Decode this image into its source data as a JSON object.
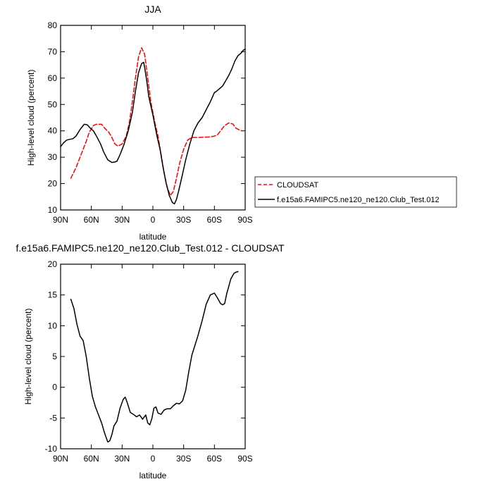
{
  "chart_data": [
    {
      "type": "line",
      "title": "JJA",
      "xlabel": "latitude",
      "ylabel": "High-level cloud (percent)",
      "xlim": [
        90,
        -90
      ],
      "ylim": [
        10,
        80
      ],
      "x_ticks": [
        90,
        60,
        30,
        0,
        -30,
        -60,
        -90
      ],
      "x_tick_labels": [
        "90N",
        "60N",
        "30N",
        "0",
        "30S",
        "60S",
        "90S"
      ],
      "y_ticks": [
        10,
        20,
        30,
        40,
        50,
        60,
        70,
        80
      ],
      "y_tick_labels": [
        "10",
        "20",
        "30",
        "40",
        "50",
        "60",
        "70",
        "80"
      ],
      "legend": {
        "position": "right",
        "entries": [
          "CLOUDSAT",
          "f.e15a6.FAMIPC5.ne120_ne120.Club_Test.012"
        ]
      },
      "series": [
        {
          "name": "CLOUDSAT",
          "color": "#ff0000",
          "dash": "dashed",
          "x": [
            80,
            75,
            70,
            65,
            62,
            58,
            55,
            50,
            47,
            43,
            40,
            37,
            34,
            30,
            26,
            23,
            20,
            17,
            14,
            11,
            8,
            6,
            4,
            2,
            0,
            -2,
            -5,
            -8,
            -11,
            -14,
            -17,
            -20,
            -23,
            -26,
            -30,
            -34,
            -38,
            -42,
            -45,
            -50,
            -55,
            -60,
            -63,
            -66,
            -70,
            -74,
            -78,
            -81,
            -84,
            -87
          ],
          "y": [
            22,
            26,
            31,
            36,
            39.5,
            42,
            42.5,
            42.5,
            41,
            39.5,
            37.5,
            35,
            34.2,
            35,
            38,
            43,
            51,
            60,
            68,
            71.5,
            69,
            63,
            57,
            51,
            47,
            43,
            38,
            31,
            24,
            18.5,
            15.5,
            17,
            22,
            27.5,
            33,
            36.5,
            37.5,
            37.5,
            37.5,
            37.6,
            37.7,
            38,
            38.5,
            40,
            42,
            43,
            42.6,
            41,
            40.4,
            40
          ]
        },
        {
          "name": "f.e15a6.FAMIPC5.ne120_ne120.Club_Test.012",
          "color": "#000000",
          "dash": "solid",
          "x": [
            90,
            87,
            84,
            81,
            78,
            75,
            71,
            67,
            64,
            61,
            58,
            55,
            51,
            48,
            44,
            40,
            37,
            35,
            32,
            28,
            24,
            20,
            17,
            14,
            11,
            9,
            8,
            6,
            4,
            2,
            0,
            -2,
            -4,
            -7,
            -10,
            -13,
            -16,
            -19,
            -21,
            -23,
            -25,
            -28,
            -32,
            -36,
            -40,
            -44,
            -48,
            -52,
            -56,
            -60,
            -62,
            -65,
            -68,
            -71,
            -74,
            -77,
            -80,
            -83,
            -86,
            -88,
            -90
          ],
          "y": [
            34,
            35.5,
            36.5,
            36.8,
            37,
            38,
            40.5,
            42.5,
            42.3,
            41,
            40,
            38,
            35,
            32,
            29,
            28,
            28.2,
            28.5,
            31,
            35,
            40,
            47,
            55,
            62,
            65.5,
            66,
            64,
            59,
            53,
            49.5,
            46,
            42,
            38,
            33,
            26,
            20,
            15.5,
            12.8,
            12.3,
            14,
            17,
            22,
            29,
            35,
            40,
            43,
            45,
            48,
            51,
            54.5,
            55,
            56,
            57,
            59,
            61,
            63.5,
            66.5,
            68.5,
            69.5,
            70.5,
            71
          ]
        }
      ]
    },
    {
      "type": "line",
      "title": "f.e15a6.FAMIPC5.ne120_ne120.Club_Test.012 - CLOUDSAT",
      "xlabel": "latitude",
      "ylabel": "High-level cloud (percent)",
      "xlim": [
        90,
        -90
      ],
      "ylim": [
        -10,
        20
      ],
      "x_ticks": [
        90,
        60,
        30,
        0,
        -30,
        -60,
        -90
      ],
      "x_tick_labels": [
        "90N",
        "60N",
        "30N",
        "0",
        "30S",
        "60S",
        "90S"
      ],
      "y_ticks": [
        -10,
        -5,
        0,
        5,
        10,
        15,
        20
      ],
      "y_tick_labels": [
        "-10",
        "-5",
        "0",
        "5",
        "10",
        "15",
        "20"
      ],
      "series": [
        {
          "name": "",
          "color": "#000000",
          "dash": "solid",
          "x": [
            80,
            77,
            74,
            71,
            68,
            65,
            62,
            59,
            56,
            53,
            50,
            47,
            44,
            42,
            40,
            38,
            35,
            32,
            29,
            27,
            25,
            22,
            19,
            16,
            13,
            10,
            7,
            5,
            3,
            1,
            -1,
            -3,
            -5,
            -8,
            -11,
            -14,
            -17,
            -20,
            -23,
            -26,
            -29,
            -32,
            -35,
            -38,
            -41,
            -44,
            -48,
            -52,
            -56,
            -60,
            -63,
            -66,
            -68,
            -70,
            -72,
            -74,
            -76,
            -79,
            -81,
            -83
          ],
          "y": [
            14.3,
            12.8,
            10.2,
            8.3,
            7.6,
            5,
            1.5,
            -1.5,
            -3.2,
            -4.5,
            -5.8,
            -7.5,
            -8.9,
            -8.7,
            -7.7,
            -6.3,
            -5.5,
            -3.4,
            -2,
            -1.6,
            -2.5,
            -4.1,
            -4.4,
            -4.8,
            -4.5,
            -5.2,
            -4.5,
            -5.8,
            -6.1,
            -5.1,
            -3.4,
            -3.2,
            -4.2,
            -4.4,
            -3.7,
            -3.5,
            -3.5,
            -3,
            -2.6,
            -2.7,
            -2.2,
            -0.5,
            2.5,
            5.2,
            6.8,
            8.4,
            10.8,
            13.5,
            15,
            15.3,
            14.5,
            13.6,
            13.4,
            13.6,
            15.2,
            16.4,
            17.6,
            18.5,
            18.7,
            18.8
          ]
        }
      ]
    }
  ]
}
